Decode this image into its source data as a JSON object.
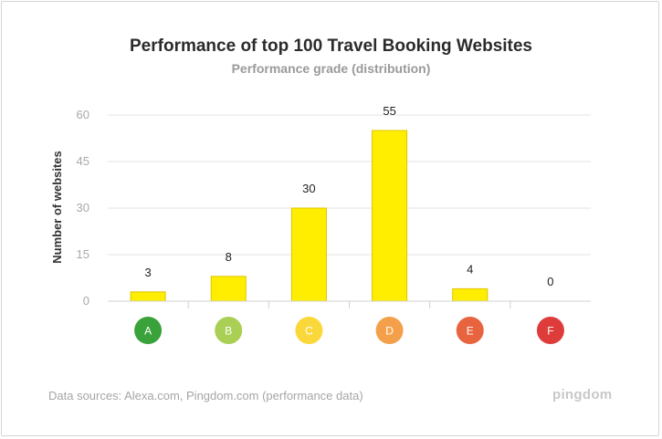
{
  "title": "Performance of top 100 Travel Booking Websites",
  "subtitle": "Performance grade (distribution)",
  "footer": "Data sources: Alexa.com, Pingdom.com (performance data)",
  "brand": "pingdom",
  "colors": {
    "bar_fill": "#ffee00",
    "bar_stroke": "#e0c400",
    "grid": "#e3e3e3",
    "axis": "#d0d0d0"
  },
  "chart_data": {
    "type": "bar",
    "categories": [
      "A",
      "B",
      "C",
      "D",
      "E",
      "F"
    ],
    "category_colors": [
      "#3aa23a",
      "#a9cf55",
      "#fbd83a",
      "#f4a04a",
      "#e8643f",
      "#de3b3b"
    ],
    "values": [
      3,
      8,
      30,
      55,
      4,
      0
    ],
    "ylabel": "Number of websites",
    "yticks": [
      0,
      15,
      30,
      45,
      60
    ],
    "ylim": [
      0,
      60
    ],
    "grid": true,
    "legend": "none"
  }
}
